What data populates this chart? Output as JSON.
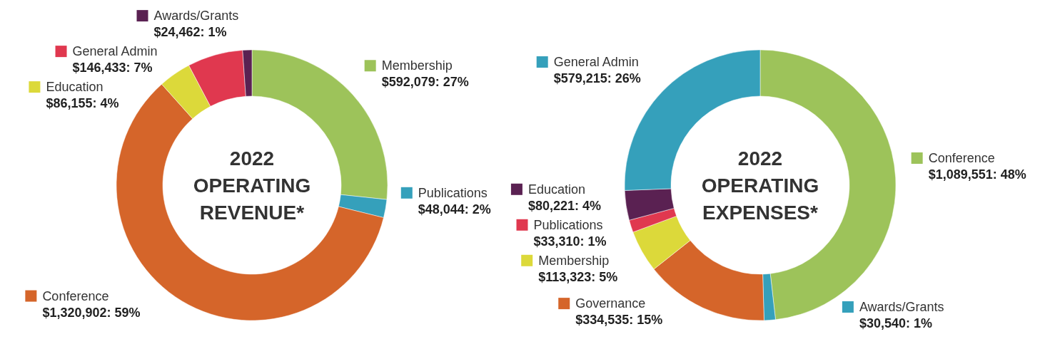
{
  "chart_data": [
    {
      "type": "donut",
      "title": "2022 OPERATING REVENUE*",
      "legend": "right",
      "categories": [
        "Membership",
        "Publications",
        "Conference",
        "Education",
        "General Admin",
        "Awards/Grants"
      ],
      "values": [
        592079,
        48044,
        1320902,
        86155,
        146433,
        24462
      ],
      "colors": [
        "#9dc35a",
        "#35a0bb",
        "#d5652a",
        "#dcd93a",
        "#e0384f",
        "#5a2152"
      ],
      "value_labels": [
        "$592,079: 27%",
        "$48,044: 2%",
        "$1,320,902: 59%",
        "$86,155: 4%",
        "$146,433: 7%",
        "$24,462: 1%"
      ]
    },
    {
      "type": "donut",
      "title": "2022 OPERATING EXPENSES*",
      "legend": "top left",
      "categories": [
        "Conference",
        "Awards/Grants",
        "Governance",
        "Membership",
        "Publications",
        "Education",
        "General Admin"
      ],
      "values": [
        1089551,
        30540,
        334535,
        113323,
        33310,
        80221,
        579215
      ],
      "colors": [
        "#9dc35a",
        "#35a0bb",
        "#d5652a",
        "#dcd93a",
        "#e0384f",
        "#5a2152",
        "#35a0bb"
      ],
      "value_labels": [
        "$1,089,551: 48%",
        "$30,540: 1%",
        "$334,535: 15%",
        "$113,323: 5%",
        "$33,310: 1%",
        "$80,221: 4%",
        "$579,215: 26%"
      ]
    }
  ]
}
